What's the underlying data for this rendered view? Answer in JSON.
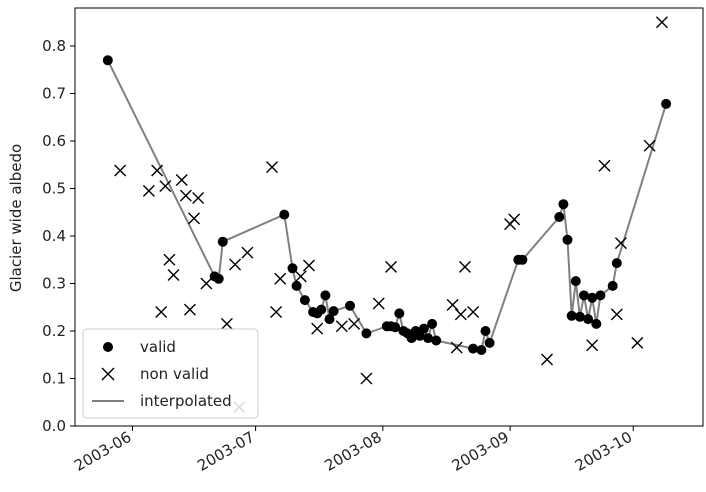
{
  "chart_data": {
    "type": "scatter",
    "title": "",
    "xlabel": "",
    "ylabel": "Glacier wide albedo",
    "xlim": [
      "2003-05-18",
      "2003-10-18"
    ],
    "ylim": [
      0.0,
      0.88
    ],
    "yticks": [
      0.0,
      0.1,
      0.2,
      0.3,
      0.4,
      0.5,
      0.6,
      0.7,
      0.8
    ],
    "xticks": [
      "2003-06-01",
      "2003-07-01",
      "2003-08-01",
      "2003-09-01",
      "2003-10-01"
    ],
    "xtick_labels": [
      "2003-06",
      "2003-07",
      "2003-08",
      "2003-09",
      "2003-10"
    ],
    "grid": false,
    "legend": {
      "placement": "lower-left",
      "entries": [
        "valid",
        "non valid",
        "interpolated"
      ]
    },
    "colors": {
      "valid": "#000000",
      "non_valid": "#000000",
      "interpolated": "#808080",
      "axes": "#000000"
    },
    "series": [
      {
        "name": "valid",
        "marker": "circle",
        "points": [
          [
            "2003-05-26",
            0.77
          ],
          [
            "2003-06-21",
            0.315
          ],
          [
            "2003-06-22",
            0.31
          ],
          [
            "2003-06-23",
            0.388
          ],
          [
            "2003-07-08",
            0.445
          ],
          [
            "2003-07-10",
            0.332
          ],
          [
            "2003-07-11",
            0.295
          ],
          [
            "2003-07-13",
            0.265
          ],
          [
            "2003-07-15",
            0.24
          ],
          [
            "2003-07-16",
            0.237
          ],
          [
            "2003-07-17",
            0.245
          ],
          [
            "2003-07-18",
            0.275
          ],
          [
            "2003-07-19",
            0.225
          ],
          [
            "2003-07-20",
            0.242
          ],
          [
            "2003-07-24",
            0.253
          ],
          [
            "2003-07-28",
            0.195
          ],
          [
            "2003-08-02",
            0.21
          ],
          [
            "2003-08-03",
            0.21
          ],
          [
            "2003-08-04",
            0.208
          ],
          [
            "2003-08-05",
            0.237
          ],
          [
            "2003-08-06",
            0.2
          ],
          [
            "2003-08-07",
            0.195
          ],
          [
            "2003-08-08",
            0.185
          ],
          [
            "2003-08-09",
            0.2
          ],
          [
            "2003-08-10",
            0.19
          ],
          [
            "2003-08-11",
            0.205
          ],
          [
            "2003-08-12",
            0.185
          ],
          [
            "2003-08-13",
            0.215
          ],
          [
            "2003-08-14",
            0.18
          ],
          [
            "2003-08-23",
            0.163
          ],
          [
            "2003-08-25",
            0.16
          ],
          [
            "2003-08-26",
            0.2
          ],
          [
            "2003-08-27",
            0.175
          ],
          [
            "2003-09-03",
            0.35
          ],
          [
            "2003-09-04",
            0.35
          ],
          [
            "2003-09-13",
            0.44
          ],
          [
            "2003-09-14",
            0.467
          ],
          [
            "2003-09-15",
            0.392
          ],
          [
            "2003-09-16",
            0.232
          ],
          [
            "2003-09-17",
            0.305
          ],
          [
            "2003-09-18",
            0.23
          ],
          [
            "2003-09-19",
            0.275
          ],
          [
            "2003-09-20",
            0.225
          ],
          [
            "2003-09-21",
            0.27
          ],
          [
            "2003-09-22",
            0.215
          ],
          [
            "2003-09-23",
            0.275
          ],
          [
            "2003-09-26",
            0.295
          ],
          [
            "2003-09-27",
            0.343
          ],
          [
            "2003-10-09",
            0.678
          ]
        ]
      },
      {
        "name": "non valid",
        "marker": "x",
        "points": [
          [
            "2003-05-29",
            0.538
          ],
          [
            "2003-06-05",
            0.495
          ],
          [
            "2003-06-07",
            0.538
          ],
          [
            "2003-06-08",
            0.24
          ],
          [
            "2003-06-09",
            0.505
          ],
          [
            "2003-06-10",
            0.35
          ],
          [
            "2003-06-11",
            0.318
          ],
          [
            "2003-06-13",
            0.518
          ],
          [
            "2003-06-14",
            0.485
          ],
          [
            "2003-06-15",
            0.245
          ],
          [
            "2003-06-16",
            0.437
          ],
          [
            "2003-06-17",
            0.48
          ],
          [
            "2003-06-19",
            0.3
          ],
          [
            "2003-06-24",
            0.215
          ],
          [
            "2003-06-26",
            0.34
          ],
          [
            "2003-06-27",
            0.04
          ],
          [
            "2003-06-29",
            0.365
          ],
          [
            "2003-07-05",
            0.545
          ],
          [
            "2003-07-06",
            0.24
          ],
          [
            "2003-07-07",
            0.31
          ],
          [
            "2003-07-12",
            0.315
          ],
          [
            "2003-07-14",
            0.338
          ],
          [
            "2003-07-16",
            0.205
          ],
          [
            "2003-07-22",
            0.21
          ],
          [
            "2003-07-25",
            0.215
          ],
          [
            "2003-07-28",
            0.1
          ],
          [
            "2003-07-31",
            0.258
          ],
          [
            "2003-08-03",
            0.335
          ],
          [
            "2003-08-18",
            0.255
          ],
          [
            "2003-08-19",
            0.165
          ],
          [
            "2003-08-20",
            0.235
          ],
          [
            "2003-08-21",
            0.335
          ],
          [
            "2003-08-23",
            0.24
          ],
          [
            "2003-09-01",
            0.425
          ],
          [
            "2003-09-02",
            0.435
          ],
          [
            "2003-09-10",
            0.14
          ],
          [
            "2003-09-21",
            0.17
          ],
          [
            "2003-09-24",
            0.548
          ],
          [
            "2003-09-27",
            0.235
          ],
          [
            "2003-09-28",
            0.385
          ],
          [
            "2003-10-02",
            0.175
          ],
          [
            "2003-10-05",
            0.59
          ],
          [
            "2003-10-08",
            0.85
          ]
        ]
      }
    ]
  }
}
